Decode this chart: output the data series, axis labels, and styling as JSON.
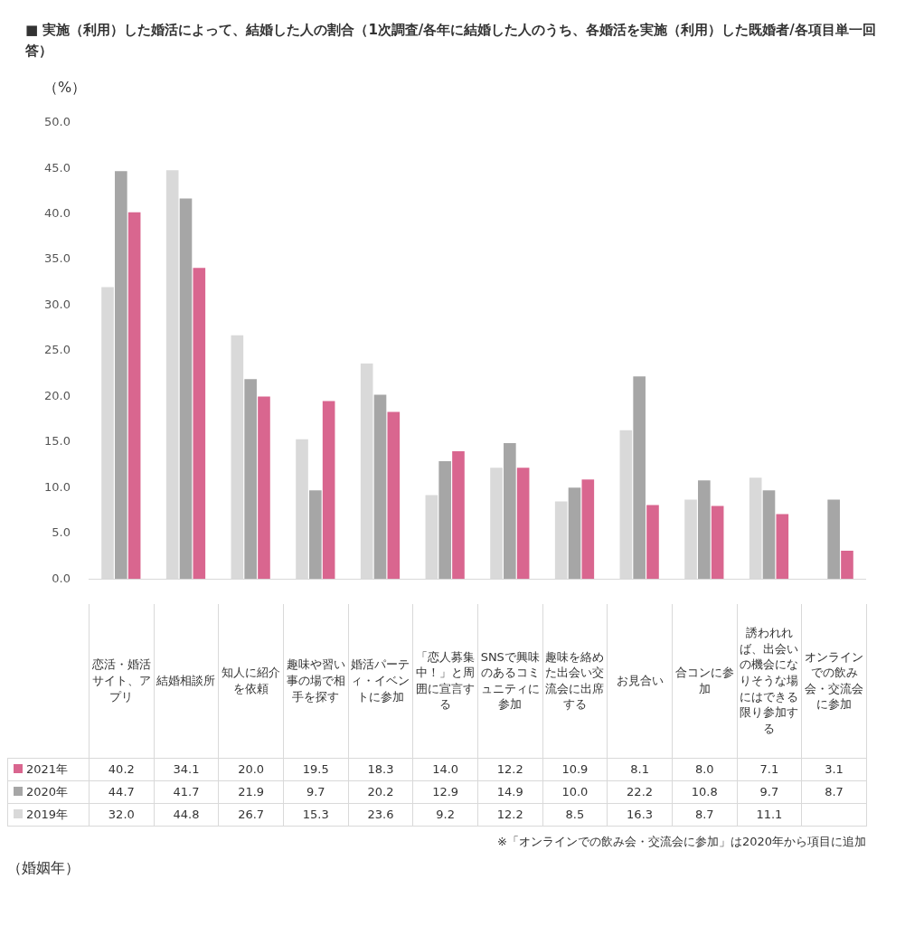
{
  "chart_data": {
    "type": "bar",
    "title": "■ 実施（利用）した婚活によって、結婚した人の割合（1次調査/各年に結婚した人のうち、各婚活を実施（利用）した既婚者/各項目単一回答）",
    "ylabel": "（%）",
    "categories": [
      "恋活・婚活サイト、アプリ",
      "結婚相談所",
      "知人に紹介を依頼",
      "趣味や習い事の場で相手を探す",
      "婚活パーティ・イベントに参加",
      "「恋人募集中！」と周囲に宣言する",
      "SNSで興味のあるコミュニティに参加",
      "趣味を絡めた出会い交流会に出席する",
      "お見合い",
      "合コンに参加",
      "誘われれば、出会いの機会になりそうな場にはできる限り参加する",
      "オンラインでの飲み会・交流会に参加"
    ],
    "series": [
      {
        "name": "2019年",
        "color": "#d9d9d9",
        "values": [
          32.0,
          44.8,
          26.7,
          15.3,
          23.6,
          9.2,
          12.2,
          8.5,
          16.3,
          8.7,
          11.1,
          null
        ],
        "value_labels": [
          "32.0",
          "44.8",
          "26.7",
          "15.3",
          "23.6",
          "9.2",
          "12.2",
          "8.5",
          "16.3",
          "8.7",
          "11.1",
          null
        ]
      },
      {
        "name": "2020年",
        "color": "#a6a6a6",
        "values": [
          44.7,
          41.7,
          21.9,
          9.7,
          20.2,
          12.9,
          14.9,
          10.0,
          22.2,
          10.8,
          9.7,
          8.7
        ],
        "value_labels": [
          "44.7",
          "41.7",
          "21.9",
          "9.7",
          "20.2",
          "12.9",
          "14.9",
          "10.0",
          "22.2",
          "10.8",
          "9.7",
          "8.7"
        ]
      },
      {
        "name": "2021年",
        "color": "#d9668f",
        "values": [
          40.2,
          34.1,
          20.0,
          19.5,
          18.3,
          14.0,
          12.2,
          10.9,
          8.1,
          8.0,
          7.1,
          3.1
        ],
        "value_labels": [
          "40.2",
          "34.1",
          "20.0",
          "19.5",
          "18.3",
          "14.0",
          "12.2",
          "10.9",
          "8.1",
          "8.0",
          "7.1",
          "3.1"
        ]
      }
    ],
    "ylim": [
      0,
      50
    ],
    "yticks": [
      {
        "value": 0,
        "label": "0.0"
      },
      {
        "value": 5,
        "label": "5.0"
      },
      {
        "value": 10,
        "label": "10.0"
      },
      {
        "value": 15,
        "label": "15.0"
      },
      {
        "value": 20,
        "label": "20.0"
      },
      {
        "value": 25,
        "label": "25.0"
      },
      {
        "value": 30,
        "label": "30.0"
      },
      {
        "value": 35,
        "label": "35.0"
      },
      {
        "value": 40,
        "label": "40.0"
      },
      {
        "value": 45,
        "label": "45.0"
      },
      {
        "value": 50,
        "label": "50.0"
      }
    ],
    "grid": false,
    "legend": "bottom",
    "annotations": [
      "※「オンラインでの飲み会・交流会に参加」は2020年から項目に追加",
      "（婚姻年）"
    ]
  }
}
